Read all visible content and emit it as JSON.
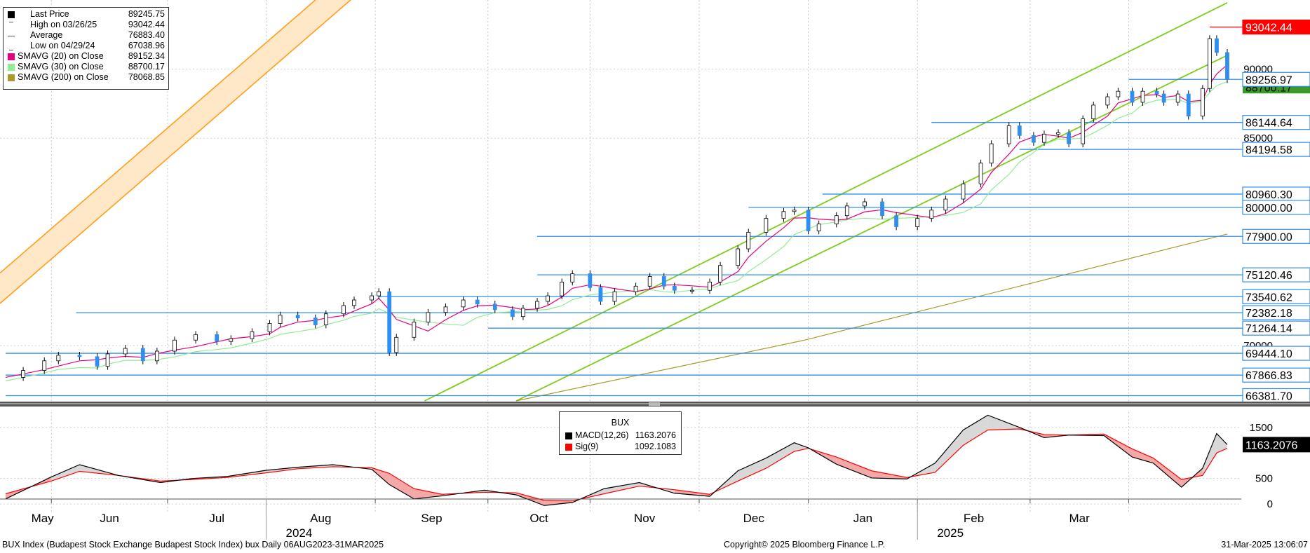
{
  "legend": [
    {
      "label": "Last Price",
      "value": "89245.75",
      "color": "#000000",
      "icon": "filled-square"
    },
    {
      "label": "High on 03/26/25",
      "value": "93042.44",
      "color": "#555555",
      "icon": "high-marker"
    },
    {
      "label": "Average",
      "value": "76883.40",
      "color": "#555555",
      "icon": "average-marker"
    },
    {
      "label": "Low on 04/29/24",
      "value": "67038.96",
      "color": "#555555",
      "icon": "low-marker"
    },
    {
      "label": "SMAVG (20)  on Close",
      "value": "89152.34",
      "color": "#e6007e"
    },
    {
      "label": "SMAVG (30)  on Close",
      "value": "88700.17",
      "color": "#90ee90"
    },
    {
      "label": "SMAVG (200)  on Close",
      "value": "78068.85",
      "color": "#a89a2c"
    }
  ],
  "macd_legend": {
    "title": "BUX",
    "rows": [
      {
        "label": "MACD(12,26)",
        "value": "1163.2076",
        "color": "#000000"
      },
      {
        "label": "Sig(9)",
        "value": "1092.1083",
        "color": "#ff0000"
      }
    ]
  },
  "footer": {
    "left": "BUX Index (Budapest Stock Exchange Budapest Stock Index) bux  Daily 06AUG2023-31MAR2025",
    "center": "Copyright© 2025 Bloomberg Finance L.P.",
    "right": "31-Mar-2025 13:06:07"
  },
  "colors": {
    "price_line": "#2f8ff0",
    "bull_candle": "#ffffff",
    "bear_candle": "#2f8ff0",
    "trend_green": "#7ccd1c",
    "channel_orange": "#ff9f1c",
    "channel_fill": "#ffe8c8",
    "sma20": "#e6007e",
    "sma30": "#90ee90",
    "sma200": "#a89a2c",
    "macd": "#000000",
    "signal": "#ff0000",
    "high_tag": "#ff0000"
  },
  "chart_data": [
    {
      "type": "candlestick",
      "title": "",
      "y_ticks": [
        70000,
        85000,
        90000
      ],
      "ylim": [
        66000,
        95000
      ],
      "grid": true,
      "legend_position": "top-left",
      "months": [
        "May",
        "Jun",
        "Jul",
        "Aug",
        "Sep",
        "Oct",
        "Nov",
        "Dec",
        "Jan",
        "Feb",
        "Mar"
      ],
      "years": [
        {
          "label": "2024",
          "after_month": "Jul"
        },
        {
          "label": "2025",
          "after_month": "Jan"
        }
      ],
      "price_levels": [
        {
          "value": 93042.44,
          "label": "93042.44",
          "start": "2025-03-26",
          "tag": "high"
        },
        {
          "value": 89256.97,
          "label": "89256.97",
          "start": "2025-03-03"
        },
        {
          "value": 86144.64,
          "label": "86144.64",
          "start": "2025-01-06"
        },
        {
          "value": 84194.58,
          "label": "84194.58",
          "start": "2025-01-31"
        },
        {
          "value": 80960.3,
          "label": "80960.30",
          "start": "2024-12-06"
        },
        {
          "value": 80000.0,
          "label": "80000.00",
          "start": "2024-11-15"
        },
        {
          "value": 77900.0,
          "label": "77900.00",
          "start": "2024-09-16"
        },
        {
          "value": 75120.46,
          "label": "75120.46",
          "start": "2024-09-16"
        },
        {
          "value": 73540.62,
          "label": "73540.62",
          "start": "2024-08-02"
        },
        {
          "value": 72382.18,
          "label": "72382.18",
          "start": "2024-05-08"
        },
        {
          "value": 71264.14,
          "label": "71264.14",
          "start": "2024-09-02"
        },
        {
          "value": 69444.1,
          "label": "69444.10",
          "start": "2024-04-18"
        },
        {
          "value": 67866.83,
          "label": "67866.83",
          "start": "2024-04-18"
        },
        {
          "value": 66381.7,
          "label": "66381.70",
          "start": "2024-04-18"
        }
      ],
      "hidden_tag": {
        "value": 88700.17,
        "label": "88700.17"
      },
      "series_close": [
        [
          "2024-04-18",
          67700
        ],
        [
          "2024-04-23",
          68200
        ],
        [
          "2024-04-29",
          68900
        ],
        [
          "2024-05-03",
          69300
        ],
        [
          "2024-05-09",
          69200
        ],
        [
          "2024-05-14",
          68500
        ],
        [
          "2024-05-17",
          69400
        ],
        [
          "2024-05-22",
          69800
        ],
        [
          "2024-05-27",
          68900
        ],
        [
          "2024-05-31",
          69600
        ],
        [
          "2024-06-05",
          70400
        ],
        [
          "2024-06-11",
          70800
        ],
        [
          "2024-06-17",
          70300
        ],
        [
          "2024-06-21",
          70500
        ],
        [
          "2024-06-27",
          71000
        ],
        [
          "2024-07-02",
          71600
        ],
        [
          "2024-07-05",
          72200
        ],
        [
          "2024-07-10",
          72000
        ],
        [
          "2024-07-15",
          71500
        ],
        [
          "2024-07-18",
          72300
        ],
        [
          "2024-07-23",
          72900
        ],
        [
          "2024-07-26",
          73300
        ],
        [
          "2024-07-31",
          73600
        ],
        [
          "2024-08-02",
          73900
        ],
        [
          "2024-08-05",
          69500
        ],
        [
          "2024-08-07",
          70600
        ],
        [
          "2024-08-12",
          71700
        ],
        [
          "2024-08-16",
          72400
        ],
        [
          "2024-08-21",
          72800
        ],
        [
          "2024-08-26",
          73300
        ],
        [
          "2024-08-30",
          73000
        ],
        [
          "2024-09-04",
          72600
        ],
        [
          "2024-09-09",
          72100
        ],
        [
          "2024-09-12",
          72700
        ],
        [
          "2024-09-16",
          73200
        ],
        [
          "2024-09-19",
          73600
        ],
        [
          "2024-09-23",
          74600
        ],
        [
          "2024-09-26",
          75200
        ],
        [
          "2024-10-01",
          74200
        ],
        [
          "2024-10-04",
          73200
        ],
        [
          "2024-10-08",
          73900
        ],
        [
          "2024-10-14",
          74300
        ],
        [
          "2024-10-18",
          75000
        ],
        [
          "2024-10-22",
          74300
        ],
        [
          "2024-10-25",
          74000
        ],
        [
          "2024-10-30",
          74000
        ],
        [
          "2024-11-04",
          74600
        ],
        [
          "2024-11-07",
          75800
        ],
        [
          "2024-11-12",
          77000
        ],
        [
          "2024-11-15",
          78200
        ],
        [
          "2024-11-20",
          79200
        ],
        [
          "2024-11-25",
          79700
        ],
        [
          "2024-11-28",
          79800
        ],
        [
          "2024-12-02",
          78300
        ],
        [
          "2024-12-05",
          78800
        ],
        [
          "2024-12-10",
          79400
        ],
        [
          "2024-12-13",
          80100
        ],
        [
          "2024-12-18",
          80400
        ],
        [
          "2024-12-23",
          79400
        ],
        [
          "2024-12-27",
          78600
        ],
        [
          "2025-01-02",
          79200
        ],
        [
          "2025-01-06",
          79800
        ],
        [
          "2025-01-10",
          80600
        ],
        [
          "2025-01-15",
          81700
        ],
        [
          "2025-01-20",
          83200
        ],
        [
          "2025-01-23",
          84600
        ],
        [
          "2025-01-28",
          85900
        ],
        [
          "2025-01-31",
          85200
        ],
        [
          "2025-02-04",
          84700
        ],
        [
          "2025-02-07",
          85300
        ],
        [
          "2025-02-11",
          85400
        ],
        [
          "2025-02-14",
          84600
        ],
        [
          "2025-02-18",
          86400
        ],
        [
          "2025-02-21",
          87400
        ],
        [
          "2025-02-25",
          88000
        ],
        [
          "2025-02-28",
          88400
        ],
        [
          "2025-03-04",
          87600
        ],
        [
          "2025-03-07",
          88400
        ],
        [
          "2025-03-11",
          88200
        ],
        [
          "2025-03-13",
          87600
        ],
        [
          "2025-03-17",
          88200
        ],
        [
          "2025-03-20",
          86600
        ],
        [
          "2025-03-24",
          88600
        ],
        [
          "2025-03-26",
          92200
        ],
        [
          "2025-03-28",
          91200
        ],
        [
          "2025-03-31",
          89245.75
        ]
      ],
      "sma200": [
        [
          "2024-09-10",
          66000
        ],
        [
          "2024-12-01",
          70400
        ],
        [
          "2025-01-31",
          74300
        ],
        [
          "2025-03-31",
          78068.85
        ]
      ],
      "channel_orange": {
        "points": [
          [
            "2024-04-18",
            75600
          ],
          [
            "2024-07-15",
            95000
          ]
        ],
        "offset": -2200
      },
      "trend_green": [
        {
          "points": [
            [
              "2024-08-15",
              66000
            ],
            [
              "2025-03-31",
              94800
            ]
          ]
        },
        {
          "points": [
            [
              "2024-09-10",
              66000
            ],
            [
              "2025-03-31",
              91000
            ]
          ]
        }
      ]
    },
    {
      "type": "line",
      "title": "BUX",
      "y_ticks": [
        0,
        500,
        1500
      ],
      "ylim": [
        -150,
        1800
      ],
      "series": [
        {
          "name": "MACD(12,26)",
          "color": "#000000",
          "values": [
            [
              "2024-04-18",
              100
            ],
            [
              "2024-05-01",
              530
            ],
            [
              "2024-05-09",
              770
            ],
            [
              "2024-05-20",
              560
            ],
            [
              "2024-06-01",
              420
            ],
            [
              "2024-06-10",
              500
            ],
            [
              "2024-06-20",
              540
            ],
            [
              "2024-07-01",
              660
            ],
            [
              "2024-07-10",
              720
            ],
            [
              "2024-07-20",
              770
            ],
            [
              "2024-07-31",
              680
            ],
            [
              "2024-08-05",
              380
            ],
            [
              "2024-08-12",
              100
            ],
            [
              "2024-08-20",
              160
            ],
            [
              "2024-09-01",
              270
            ],
            [
              "2024-09-10",
              180
            ],
            [
              "2024-09-18",
              -30
            ],
            [
              "2024-09-26",
              30
            ],
            [
              "2024-10-05",
              300
            ],
            [
              "2024-10-15",
              420
            ],
            [
              "2024-10-25",
              210
            ],
            [
              "2024-11-04",
              150
            ],
            [
              "2024-11-12",
              650
            ],
            [
              "2024-11-20",
              900
            ],
            [
              "2024-11-28",
              1200
            ],
            [
              "2024-12-02",
              1100
            ],
            [
              "2024-12-10",
              780
            ],
            [
              "2024-12-20",
              510
            ],
            [
              "2024-12-30",
              490
            ],
            [
              "2025-01-07",
              800
            ],
            [
              "2025-01-15",
              1450
            ],
            [
              "2025-01-22",
              1740
            ],
            [
              "2025-01-31",
              1500
            ],
            [
              "2025-02-07",
              1300
            ],
            [
              "2025-02-14",
              1350
            ],
            [
              "2025-02-24",
              1340
            ],
            [
              "2025-03-04",
              920
            ],
            [
              "2025-03-10",
              800
            ],
            [
              "2025-03-18",
              330
            ],
            [
              "2025-03-24",
              700
            ],
            [
              "2025-03-28",
              1380
            ],
            [
              "2025-03-31",
              1163.2076
            ]
          ]
        },
        {
          "name": "Sig(9)",
          "color": "#ff0000",
          "values": [
            [
              "2024-04-18",
              200
            ],
            [
              "2024-05-01",
              450
            ],
            [
              "2024-05-09",
              640
            ],
            [
              "2024-05-20",
              560
            ],
            [
              "2024-06-01",
              450
            ],
            [
              "2024-06-10",
              480
            ],
            [
              "2024-06-20",
              520
            ],
            [
              "2024-07-01",
              610
            ],
            [
              "2024-07-10",
              690
            ],
            [
              "2024-07-20",
              730
            ],
            [
              "2024-07-31",
              710
            ],
            [
              "2024-08-05",
              600
            ],
            [
              "2024-08-12",
              300
            ],
            [
              "2024-08-20",
              190
            ],
            [
              "2024-09-01",
              230
            ],
            [
              "2024-09-10",
              220
            ],
            [
              "2024-09-18",
              70
            ],
            [
              "2024-09-26",
              60
            ],
            [
              "2024-10-05",
              200
            ],
            [
              "2024-10-15",
              350
            ],
            [
              "2024-10-25",
              280
            ],
            [
              "2024-11-04",
              190
            ],
            [
              "2024-11-12",
              450
            ],
            [
              "2024-11-20",
              700
            ],
            [
              "2024-11-28",
              1030
            ],
            [
              "2024-12-02",
              1090
            ],
            [
              "2024-12-10",
              920
            ],
            [
              "2024-12-20",
              650
            ],
            [
              "2024-12-30",
              520
            ],
            [
              "2025-01-07",
              620
            ],
            [
              "2025-01-15",
              1150
            ],
            [
              "2025-01-22",
              1450
            ],
            [
              "2025-01-31",
              1470
            ],
            [
              "2025-02-07",
              1360
            ],
            [
              "2025-02-14",
              1350
            ],
            [
              "2025-02-24",
              1370
            ],
            [
              "2025-03-04",
              1080
            ],
            [
              "2025-03-10",
              900
            ],
            [
              "2025-03-18",
              480
            ],
            [
              "2025-03-24",
              560
            ],
            [
              "2025-03-28",
              1000
            ],
            [
              "2025-03-31",
              1092.1083
            ]
          ]
        }
      ],
      "value_tag": {
        "value": 1163.2076,
        "label": "1163.2076"
      }
    }
  ]
}
